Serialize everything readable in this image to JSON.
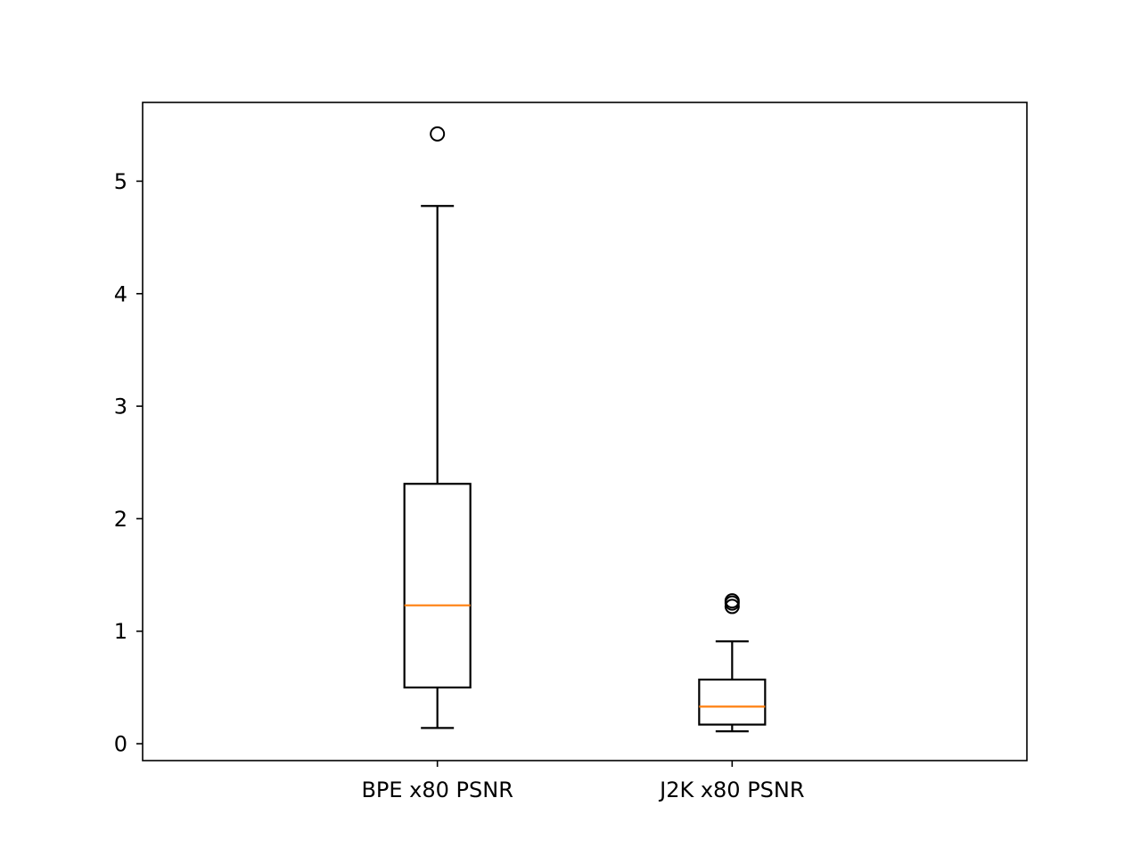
{
  "chart_data": {
    "type": "box",
    "title": "",
    "xlabel": "",
    "ylabel": "",
    "categories": [
      "BPE x80 PSNR",
      "J2K x80 PSNR"
    ],
    "boxes": [
      {
        "label": "BPE x80 PSNR",
        "whisker_low": 0.14,
        "q1": 0.5,
        "median": 1.23,
        "q3": 2.31,
        "whisker_high": 4.78,
        "outliers": [
          5.42
        ]
      },
      {
        "label": "J2K x80 PSNR",
        "whisker_low": 0.11,
        "q1": 0.17,
        "median": 0.33,
        "q3": 0.57,
        "whisker_high": 0.91,
        "outliers": [
          1.22,
          1.25,
          1.27
        ]
      }
    ],
    "ylim": [
      -0.15,
      5.7
    ],
    "yticks": [
      "0",
      "1",
      "2",
      "3",
      "4",
      "5"
    ],
    "grid": false,
    "colors": {
      "box": "#000000",
      "median": "#ff7f0e",
      "outlier": "#000000"
    }
  }
}
